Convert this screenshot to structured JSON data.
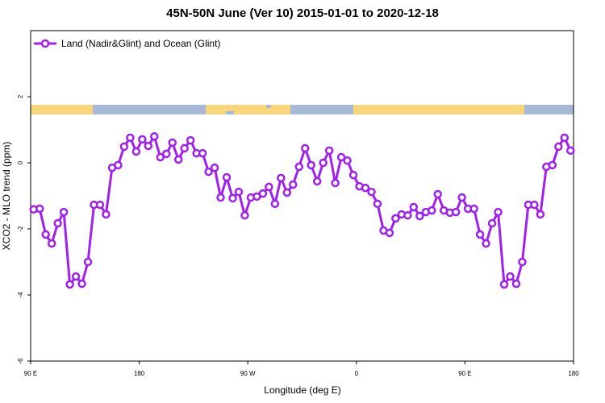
{
  "chart_data": {
    "type": "line",
    "title": "45N-50N June (Ver 10)   2015-01-01 to 2020-12-18",
    "x_label": "Longitude (deg E)",
    "y_label": "XCO2 - MLO trend (ppm)",
    "xlim": [
      90,
      540
    ],
    "ylim": [
      -6,
      4
    ],
    "xticks": [
      {
        "value": 90,
        "label": "90 E"
      },
      180,
      {
        "value": 270,
        "label": "90 W"
      },
      {
        "value": 360,
        "label": "0"
      },
      {
        "value": 450,
        "label": "90 E"
      },
      {
        "value": 540,
        "label": "180"
      }
    ],
    "yticks": [
      -6,
      -4,
      -2,
      0,
      2
    ],
    "legend": "top-left",
    "x": [
      92.5,
      97.5,
      102.5,
      107.5,
      112.5,
      117.5,
      122.5,
      127.5,
      132.5,
      137.5,
      142.5,
      147.5,
      152.5,
      157.5,
      162.5,
      167.5,
      172.5,
      177.5,
      182.5,
      187.5,
      192.5,
      197.5,
      202.5,
      207.5,
      212.5,
      217.5,
      222.5,
      227.5,
      232.5,
      237.5,
      242.5,
      247.5,
      252.5,
      257.5,
      262.5,
      267.5,
      272.5,
      277.5,
      282.5,
      287.5,
      292.5,
      297.5,
      302.5,
      307.5,
      312.5,
      317.5,
      322.5,
      327.5,
      332.5,
      337.5,
      342.5,
      347.5,
      352.5,
      357.5,
      362.5,
      367.5,
      372.5,
      377.5,
      382.5,
      387.5,
      392.5,
      397.5,
      402.5,
      407.5,
      412.5,
      417.5,
      422.5,
      427.5,
      432.5,
      437.5,
      442.5,
      447.5,
      452.5,
      457.5,
      462.5,
      467.5,
      472.5,
      477.5,
      482.5,
      487.5,
      492.5,
      497.5,
      502.5,
      507.5,
      512.5,
      517.5,
      522.5,
      527.5,
      532.5,
      537.5
    ],
    "series": [
      {
        "name": "Land (Nadir&Glint) and Ocean (Glint)",
        "color": "#a020f0",
        "values": [
          -1.41,
          -1.39,
          -2.17,
          -2.44,
          -1.83,
          -1.49,
          -3.68,
          -3.44,
          -3.66,
          -3.0,
          -1.27,
          -1.27,
          -1.56,
          -0.15,
          -0.07,
          0.49,
          0.76,
          0.34,
          0.71,
          0.51,
          0.8,
          0.17,
          0.27,
          0.61,
          0.1,
          0.44,
          0.68,
          0.29,
          0.29,
          -0.27,
          -0.15,
          -1.05,
          -0.44,
          -1.07,
          -0.88,
          -1.59,
          -1.05,
          -1.02,
          -0.93,
          -0.73,
          -1.24,
          -0.46,
          -0.9,
          -0.66,
          -0.12,
          0.44,
          -0.07,
          -0.56,
          0.0,
          0.37,
          -0.61,
          0.17,
          0.07,
          -0.37,
          -0.71,
          -0.76,
          -0.88,
          -1.24,
          -2.05,
          -2.12,
          -1.68,
          -1.56,
          -1.59,
          -1.34,
          -1.61,
          -1.49,
          -1.44,
          -0.95,
          -1.44,
          -1.51,
          -1.49,
          -1.05,
          -1.39,
          -1.39,
          -2.17,
          -2.44,
          -1.83,
          -1.49,
          -3.68,
          -3.44,
          -3.66,
          -3.0,
          -1.27,
          -1.27,
          -1.56,
          -0.12,
          -0.07,
          0.49,
          0.76,
          0.37
        ]
      }
    ]
  }
}
